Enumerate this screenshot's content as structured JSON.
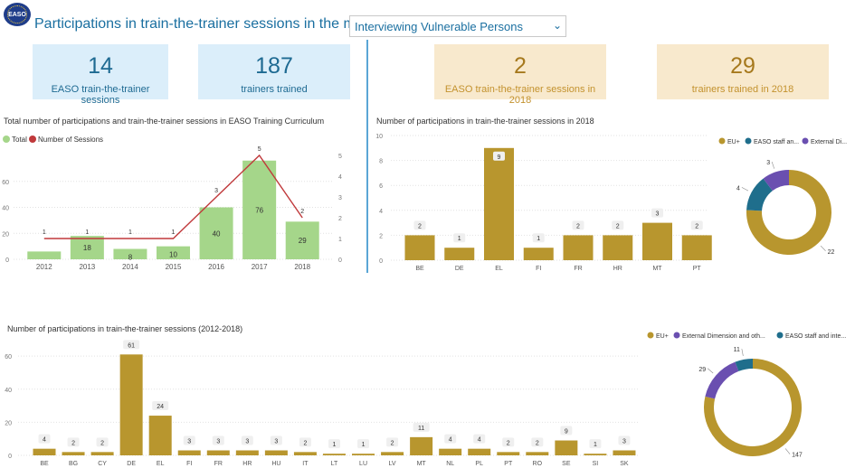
{
  "header": {
    "title": "Participations in train-the-trainer sessions in the module :",
    "logo_text": "EASO",
    "dropdown_value": "Interviewing Vulnerable Persons"
  },
  "colors": {
    "green_bar": "#a5d68a",
    "red_line": "#c0393b",
    "gold": "#b8962e",
    "teal": "#1f6e8c",
    "purple": "#6a4fb0",
    "blue_card": "#dbeefa",
    "tan_card": "#f8e9cd"
  },
  "cards": [
    {
      "value": "14",
      "label": "EASO train-the-trainer sessions",
      "style": "blue"
    },
    {
      "value": "187",
      "label": "trainers trained",
      "style": "blue"
    },
    {
      "value": "2",
      "label": "EASO train-the-trainer sessions in 2018",
      "style": "tan"
    },
    {
      "value": "29",
      "label": "trainers trained in 2018",
      "style": "tan"
    }
  ],
  "chart_data": [
    {
      "type": "bar",
      "title": "Total number of participations and train-the-trainer sessions in EASO Training Curriculum",
      "legend": [
        "Total",
        "Number of Sessions"
      ],
      "legend_position": "top-left",
      "categories": [
        "2012",
        "2013",
        "2014",
        "2015",
        "2016",
        "2017",
        "2018"
      ],
      "series": [
        {
          "name": "Total",
          "type": "bar",
          "axis": "left",
          "values": [
            6,
            18,
            8,
            10,
            40,
            76,
            29
          ],
          "labels": [
            "",
            "18",
            "8",
            "10",
            "40",
            "76",
            "29"
          ]
        },
        {
          "name": "Number of Sessions",
          "type": "line",
          "axis": "right",
          "values": [
            1,
            1,
            1,
            1,
            3,
            5,
            2
          ]
        }
      ],
      "ylim": [
        0,
        80
      ],
      "y_ticks": [
        "0",
        "20",
        "40",
        "60"
      ],
      "y2lim": [
        0,
        5
      ],
      "y2_ticks": [
        "0",
        "1",
        "2",
        "3",
        "4",
        "5"
      ],
      "grid": true
    },
    {
      "type": "bar",
      "title": "Number of participations in train-the-trainer sessions in 2018",
      "categories": [
        "BE",
        "DE",
        "EL",
        "FI",
        "FR",
        "HR",
        "MT",
        "PT"
      ],
      "values": [
        2,
        1,
        9,
        1,
        2,
        2,
        3,
        2
      ],
      "ylim": [
        0,
        10
      ],
      "y_ticks": [
        "0",
        "2",
        "4",
        "6",
        "8",
        "10"
      ],
      "grid": true
    },
    {
      "type": "pie",
      "legend": [
        "EU+",
        "EASO staff an...",
        "External Di..."
      ],
      "legend_position": "top",
      "slices": [
        {
          "name": "EU+",
          "value": 22
        },
        {
          "name": "EASO staff and internal",
          "value": 4
        },
        {
          "name": "External Dimension",
          "value": 3
        }
      ]
    },
    {
      "type": "bar",
      "title": "Number of participations in train-the-trainer sessions (2012-2018)",
      "categories": [
        "BE",
        "BG",
        "CY",
        "DE",
        "EL",
        "FI",
        "FR",
        "HR",
        "HU",
        "IT",
        "LT",
        "LU",
        "LV",
        "MT",
        "NL",
        "PL",
        "PT",
        "RO",
        "SE",
        "SI",
        "SK"
      ],
      "values": [
        4,
        2,
        2,
        61,
        24,
        3,
        3,
        3,
        3,
        2,
        1,
        1,
        2,
        11,
        4,
        4,
        2,
        2,
        9,
        1,
        3
      ],
      "ylim": [
        0,
        65
      ],
      "y_ticks": [
        "0",
        "20",
        "40",
        "60"
      ],
      "grid": true
    },
    {
      "type": "pie",
      "legend": [
        "EU+",
        "External Dimension and oth...",
        "EASO staff and inte..."
      ],
      "legend_position": "top",
      "slices": [
        {
          "name": "EU+",
          "value": 147
        },
        {
          "name": "External Dimension and others",
          "value": 29
        },
        {
          "name": "EASO staff and internal",
          "value": 11
        }
      ]
    }
  ]
}
